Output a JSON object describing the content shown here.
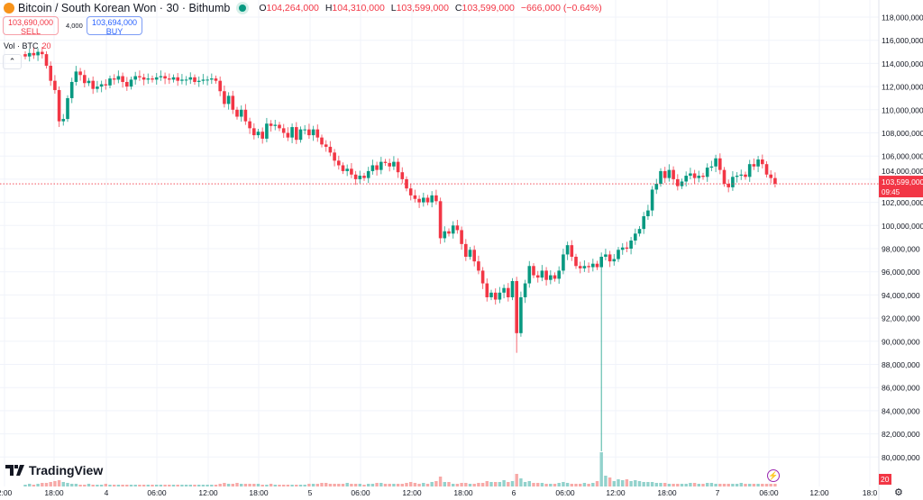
{
  "header": {
    "symbol": "Bitcoin / South Korean Won · 30 · Bithumb",
    "open_label": "O",
    "open": "104,264,000",
    "high_label": "H",
    "high": "104,310,000",
    "low_label": "L",
    "low": "103,599,000",
    "close_label": "C",
    "close": "103,599,000",
    "change": "−666,000 (−0.64%)"
  },
  "trade": {
    "sell_price": "103,690,000",
    "sell_label": "SELL",
    "spread": "4,000",
    "buy_price": "103,694,000",
    "buy_label": "BUY"
  },
  "volume_legend": {
    "label": "Vol · BTC",
    "value": "20"
  },
  "collapse_icon": "chevron-up-icon",
  "brand": "TradingView",
  "colors": {
    "up": "#089981",
    "down": "#f23645",
    "vol_up": "#92d2cc",
    "vol_down": "#f7a9a7",
    "accent_purple": "#9c27b0"
  },
  "last_price": {
    "price": "103,599,000",
    "countdown": "09:45",
    "value": 103.599
  },
  "volume_axis_label": "20",
  "chart_data": {
    "type": "candlestick",
    "interval": "30",
    "unit": "millions KRW",
    "price_axis_labels": [
      "118,000,000",
      "116,000,000",
      "114,000,000",
      "112,000,000",
      "110,000,000",
      "108,000,000",
      "106,000,000",
      "104,000,000",
      "102,000,000",
      "100,000,000",
      "98,000,000",
      "96,000,000",
      "94,000,000",
      "92,000,000",
      "90,000,000",
      "88,000,000",
      "86,000,000",
      "84,000,000",
      "82,000,000",
      "80,000,000"
    ],
    "ylim": [
      80,
      118
    ],
    "time_axis_labels": [
      "2:00",
      "18:00",
      "4",
      "06:00",
      "12:00",
      "18:00",
      "5",
      "06:00",
      "12:00",
      "18:00",
      "6",
      "06:00",
      "12:00",
      "18:00",
      "7",
      "06:00",
      "12:00",
      "18:0"
    ],
    "closes": [
      114.6,
      114.9,
      114.7,
      115.0,
      114.8,
      113.8,
      112.5,
      111.7,
      109.0,
      109.2,
      111.0,
      112.4,
      113.3,
      113.0,
      112.3,
      112.5,
      111.8,
      112.0,
      112.2,
      112.1,
      112.7,
      112.6,
      112.9,
      112.4,
      112.0,
      112.6,
      112.9,
      112.8,
      112.6,
      112.7,
      112.6,
      112.8,
      112.9,
      112.7,
      112.6,
      112.8,
      112.5,
      112.6,
      112.6,
      112.8,
      112.4,
      112.5,
      112.6,
      112.6,
      112.7,
      112.5,
      111.6,
      110.5,
      111.2,
      110.0,
      109.4,
      110.0,
      109.0,
      108.4,
      107.8,
      108.1,
      107.5,
      108.8,
      108.6,
      108.7,
      108.4,
      108.0,
      107.6,
      108.5,
      107.4,
      108.3,
      108.3,
      107.8,
      108.3,
      107.6,
      107.0,
      106.8,
      106.3,
      105.6,
      105.2,
      104.7,
      104.9,
      104.4,
      104.0,
      104.3,
      104.1,
      104.7,
      105.2,
      104.8,
      105.5,
      105.4,
      105.1,
      105.5,
      104.6,
      104.0,
      103.2,
      102.6,
      102.3,
      102.0,
      102.4,
      102.0,
      102.6,
      102.1,
      98.9,
      99.5,
      99.3,
      100.0,
      99.6,
      98.4,
      97.3,
      97.9,
      96.9,
      96.1,
      95.0,
      93.8,
      94.2,
      93.6,
      94.2,
      94.6,
      93.8,
      95.2,
      90.7,
      93.8,
      95.0,
      96.5,
      95.7,
      95.5,
      96.1,
      95.3,
      95.7,
      95.4,
      96.1,
      97.5,
      98.3,
      97.3,
      96.5,
      96.3,
      96.5,
      96.4,
      96.7,
      96.4,
      97.3,
      97.5,
      96.9,
      97.1,
      97.9,
      98.1,
      98.0,
      98.7,
      99.3,
      99.7,
      100.8,
      101.3,
      103.1,
      103.6,
      104.7,
      104.1,
      104.8,
      104.0,
      103.4,
      103.8,
      104.3,
      104.5,
      104.1,
      104.3,
      104.2,
      105.0,
      105.1,
      105.8,
      104.8,
      103.6,
      103.3,
      104.2,
      104.3,
      104.4,
      104.2,
      105.3,
      105.1,
      105.7,
      105.3,
      104.4,
      104.1,
      103.6
    ],
    "notable_lows": [
      {
        "index": 116,
        "low": 89.0
      },
      {
        "index": 136,
        "low": 80.5
      }
    ],
    "volumes": [
      2,
      3,
      2,
      3,
      4,
      4,
      5,
      6,
      7,
      5,
      4,
      3,
      3,
      2,
      2,
      3,
      2,
      2,
      2,
      3,
      2,
      2,
      2,
      2,
      2,
      2,
      2,
      2,
      2,
      2,
      2,
      2,
      2,
      2,
      2,
      2,
      2,
      2,
      2,
      2,
      2,
      2,
      2,
      2,
      2,
      2,
      3,
      4,
      3,
      3,
      4,
      3,
      3,
      3,
      3,
      3,
      2,
      2,
      3,
      2,
      2,
      2,
      2,
      2,
      2,
      2,
      2,
      3,
      3,
      3,
      4,
      4,
      3,
      3,
      3,
      3,
      4,
      3,
      3,
      3,
      2,
      3,
      3,
      4,
      4,
      3,
      3,
      3,
      3,
      3,
      4,
      5,
      4,
      3,
      4,
      3,
      5,
      6,
      11,
      5,
      5,
      3,
      3,
      4,
      4,
      3,
      3,
      4,
      4,
      6,
      5,
      5,
      5,
      7,
      5,
      6,
      14,
      9,
      5,
      6,
      4,
      4,
      4,
      3,
      3,
      3,
      4,
      5,
      4,
      3,
      3,
      3,
      4,
      3,
      4,
      6,
      38,
      12,
      10,
      6,
      8,
      7,
      8,
      6,
      7,
      6,
      5,
      5,
      5,
      4,
      4,
      4,
      3,
      3,
      3,
      3,
      3,
      4,
      4,
      3,
      3,
      4,
      4,
      3,
      3,
      3,
      3,
      3,
      3,
      4,
      3,
      3,
      3,
      3,
      3,
      3,
      3,
      3
    ]
  }
}
